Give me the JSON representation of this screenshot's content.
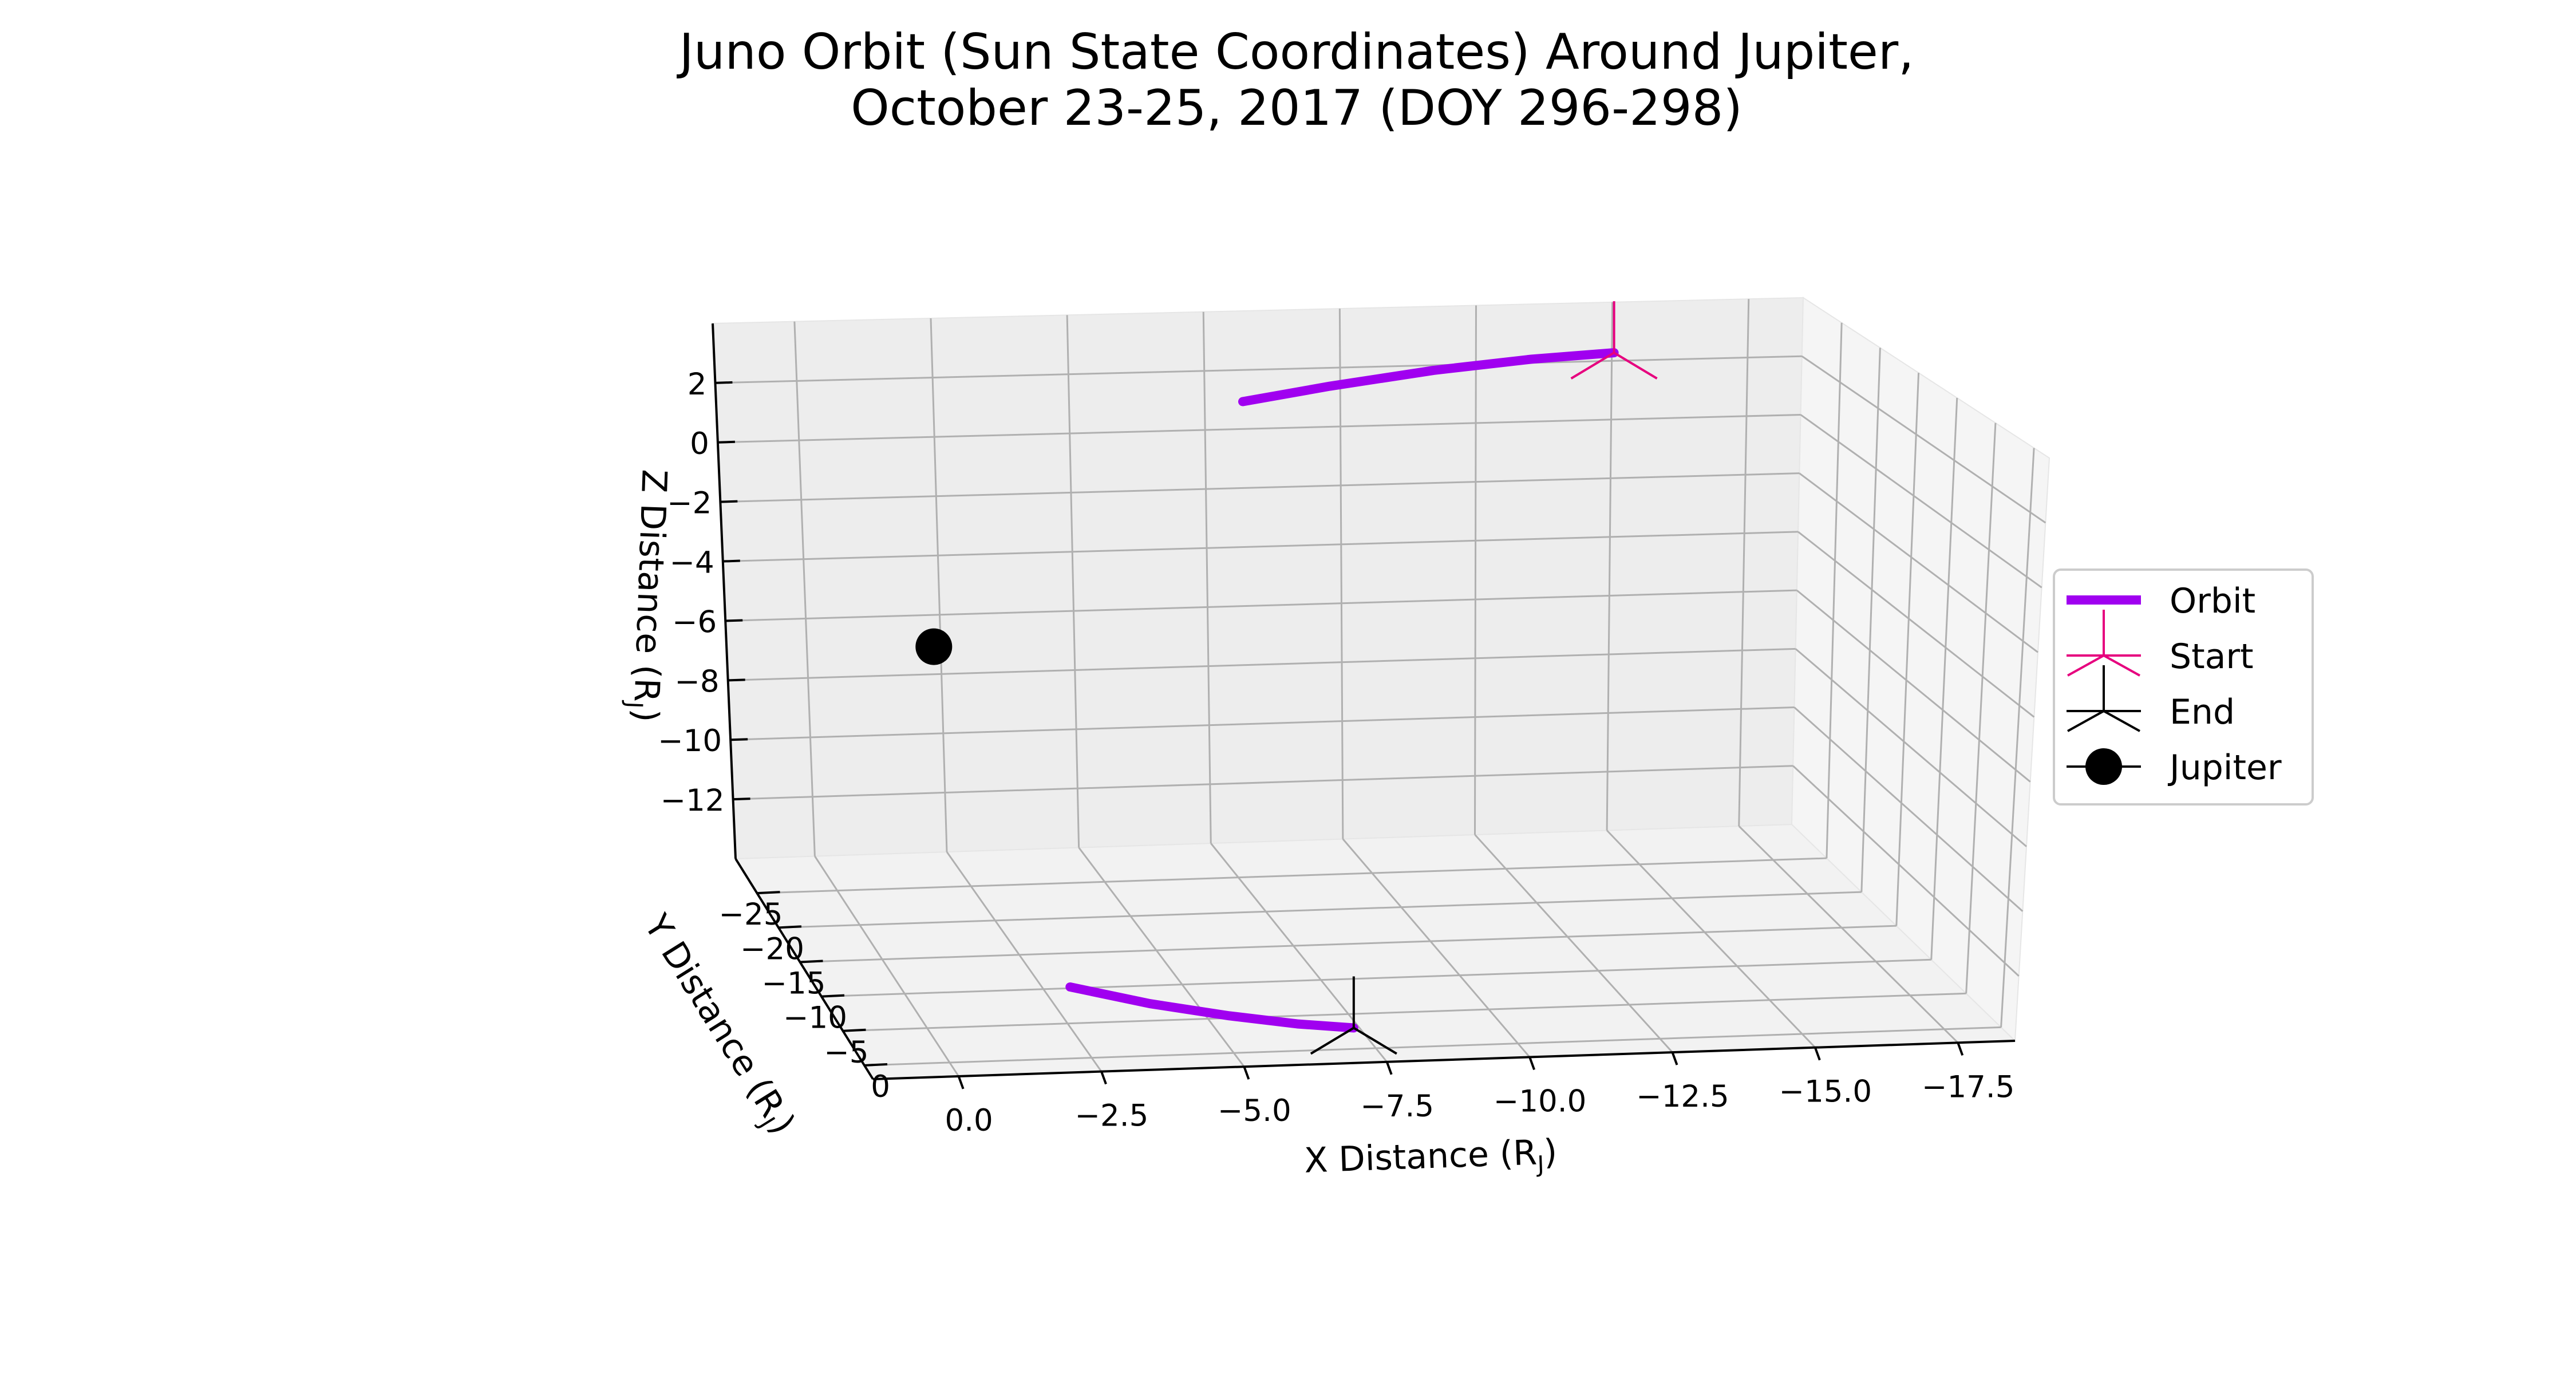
{
  "chart_data": {
    "type": "line",
    "projection": "3d",
    "title": "Juno Orbit (Sun State Coordinates) Around Jupiter,",
    "subtitle": "October 23-25, 2017 (DOY 296-298)",
    "xlabel": {
      "main": "X Distance (R",
      "sub": "J",
      "tail": ")"
    },
    "ylabel": {
      "main": "Y Distance (R",
      "sub": "J",
      "tail": ")"
    },
    "zlabel": {
      "main": "Z Distance (R",
      "sub": "J",
      "tail": ")"
    },
    "x_ticks": [
      "0.0",
      "−2.5",
      "−5.0",
      "−7.5",
      "−10.0",
      "−12.5",
      "−15.0",
      "−17.5"
    ],
    "y_ticks": [
      "−25",
      "−20",
      "−15",
      "−10",
      "−5",
      "0"
    ],
    "z_ticks": [
      "2",
      "0",
      "−2",
      "−4",
      "−6",
      "−8",
      "−10",
      "−12"
    ],
    "xlim": [
      1.5,
      -18.5
    ],
    "ylim": [
      -30,
      2
    ],
    "zlim": [
      -14,
      4
    ],
    "grid": true,
    "legend_position": "right",
    "series": [
      {
        "name": "Orbit",
        "color": "#a000f0",
        "points": [
          {
            "x": -2.4,
            "y": -3.0,
            "z": -12.3
          },
          {
            "x": -3.8,
            "y": -3.0,
            "z": -12.95
          },
          {
            "x": -5.2,
            "y": -3.0,
            "z": -13.45
          },
          {
            "x": -6.4,
            "y": -3.0,
            "z": -13.8
          },
          {
            "x": -7.4,
            "y": -3.0,
            "z": -14.0
          },
          null,
          {
            "x": -8.0,
            "y": -28.0,
            "z": 1.4
          },
          {
            "x": -9.6,
            "y": -28.0,
            "z": 1.85
          },
          {
            "x": -11.5,
            "y": -28.0,
            "z": 2.3
          },
          {
            "x": -13.3,
            "y": -28.0,
            "z": 2.6
          },
          {
            "x": -14.8,
            "y": -28.0,
            "z": 2.75
          }
        ]
      }
    ],
    "markers": [
      {
        "name": "Start",
        "symbol": "tri_down",
        "color": "#e6007e",
        "x": -14.8,
        "y": -28.0,
        "z": 2.75
      },
      {
        "name": "End",
        "symbol": "tri_down",
        "color": "#000000",
        "x": -7.4,
        "y": -3.0,
        "z": -14.0
      },
      {
        "name": "Jupiter",
        "symbol": "circle",
        "color": "#000000",
        "x": 0,
        "y": 0,
        "z": 0
      }
    ],
    "legend": [
      "Orbit",
      "Start",
      "End",
      "Jupiter"
    ]
  }
}
